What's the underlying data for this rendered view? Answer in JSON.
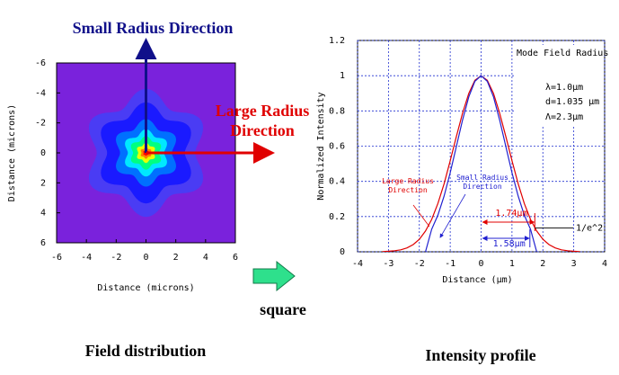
{
  "chart_data": [
    {
      "type": "contour",
      "annotations": [
        "Small Radius Direction",
        "Large Radius Direction"
      ],
      "xlabel": "Distance (microns)",
      "ylabel": "Distance (microns)",
      "xlim": [
        -6,
        6
      ],
      "ylim": [
        -6,
        6
      ],
      "y_inverted": true,
      "xticks": [
        -6,
        -4,
        -2,
        0,
        2,
        4,
        6
      ],
      "yticks": [
        -6,
        -4,
        -2,
        0,
        2,
        4,
        6
      ],
      "background": "#7a22dc",
      "levels": [
        0.05,
        0.1,
        0.2,
        0.4,
        0.6,
        0.8,
        0.9,
        1.0
      ],
      "radii": [
        3.8,
        3.0,
        2.0,
        1.4,
        1.0,
        0.6,
        0.35,
        0.18
      ],
      "colors": [
        "#4a3cf4",
        "#1a1aff",
        "#0070ff",
        "#00e8ff",
        "#00ff80",
        "#e8ff00",
        "#ff8000",
        "#ff0000"
      ],
      "caption": "Field distribution"
    },
    {
      "type": "line",
      "xlabel": "Distance (μm)",
      "ylabel": "Normalized Intensity",
      "xlim": [
        -4,
        4
      ],
      "ylim": [
        0,
        1.2
      ],
      "xticks": [
        -4,
        -3,
        -2,
        -1,
        0,
        1,
        2,
        3,
        4
      ],
      "yticks": [
        0,
        0.2,
        0.4,
        0.6,
        0.8,
        1,
        1.2
      ],
      "grid": true,
      "x": [
        -3.2,
        -3.0,
        -2.8,
        -2.6,
        -2.4,
        -2.2,
        -2.0,
        -1.8,
        -1.6,
        -1.4,
        -1.2,
        -1.0,
        -0.8,
        -0.6,
        -0.4,
        -0.2,
        0,
        0.2,
        0.4,
        0.6,
        0.8,
        1.0,
        1.2,
        1.4,
        1.6,
        1.8,
        2.0,
        2.2,
        2.4,
        2.6,
        2.8,
        3.0,
        3.2
      ],
      "series": [
        {
          "name": "Large Radius Direction",
          "color": "#e00000",
          "values": [
            0.001,
            0.003,
            0.006,
            0.011,
            0.022,
            0.041,
            0.071,
            0.118,
            0.184,
            0.274,
            0.386,
            0.517,
            0.655,
            0.788,
            0.9,
            0.974,
            1,
            0.974,
            0.9,
            0.788,
            0.655,
            0.517,
            0.386,
            0.274,
            0.184,
            0.118,
            0.071,
            0.041,
            0.022,
            0.011,
            0.006,
            0.003,
            0.001
          ]
        },
        {
          "name": "Small Radius Direction",
          "color": "#2020d0",
          "values": [
            null,
            null,
            null,
            null,
            null,
            null,
            null,
            0,
            0.128,
            0.208,
            0.316,
            0.449,
            0.599,
            0.749,
            0.88,
            0.968,
            1,
            0.968,
            0.88,
            0.749,
            0.599,
            0.449,
            0.316,
            0.208,
            0.128,
            0,
            null,
            null,
            null,
            null,
            null,
            null,
            null
          ]
        }
      ],
      "info": [
        "Mode Field Radius",
        "λ=1.0μm",
        "d=1.035 μm",
        "Λ=2.3μm"
      ],
      "radius_marks": [
        {
          "value": 1.74,
          "label": "1.74μm"
        },
        {
          "value": 1.58,
          "label": "1.58μm"
        }
      ],
      "threshold": {
        "value": 0.135,
        "label": "1/e^2"
      },
      "caption": "Intensity profile"
    }
  ],
  "arrow_label": "square"
}
